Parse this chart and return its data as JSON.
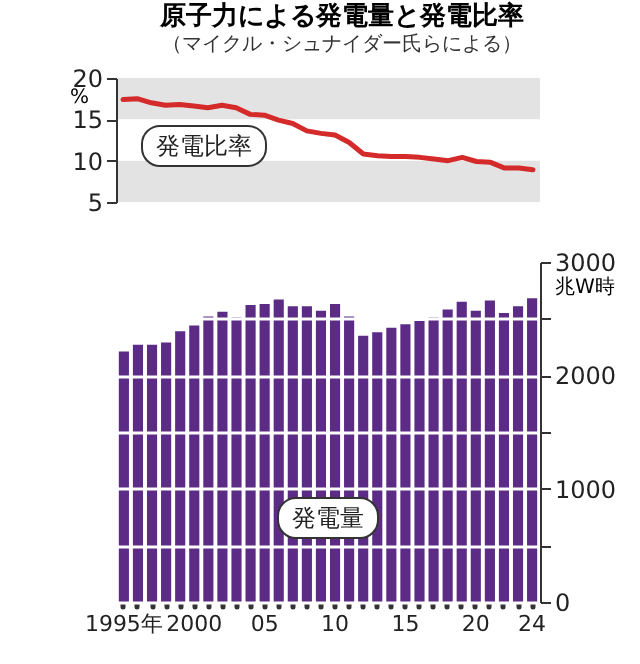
{
  "chart_data": [
    {
      "type": "line",
      "title": "原子力による発電量と発電比率",
      "subtitle": "（マイクル・シュナイダー氏らによる）",
      "categories": [
        null,
        null,
        null,
        null,
        null,
        null,
        null,
        null,
        null,
        null,
        null,
        null,
        null,
        null,
        null,
        null,
        null,
        null,
        null,
        null,
        null,
        null,
        null,
        null,
        null,
        null,
        null,
        null,
        null,
        null
      ],
      "series": [
        {
          "name": "発電比率",
          "color": "#d42a2a",
          "values": [
            17.4,
            17.5,
            17.0,
            16.7,
            16.8,
            16.6,
            16.4,
            16.7,
            16.4,
            15.6,
            15.5,
            14.9,
            14.5,
            13.6,
            13.3,
            13.1,
            12.2,
            10.8,
            10.6,
            10.5,
            10.5,
            10.4,
            10.2,
            10.0,
            10.4,
            9.9,
            9.8,
            9.1,
            9.1,
            8.9
          ]
        }
      ],
      "ylabel": "%",
      "ylim": [
        5,
        20
      ],
      "yticks": [
        5,
        10,
        15,
        20
      ],
      "bands": [
        {
          "axis": "y",
          "from": 15,
          "to": 20,
          "color": "#e3e3e3"
        },
        {
          "axis": "y",
          "from": 5,
          "to": 10,
          "color": "#e3e3e3"
        }
      ],
      "tick_labels": "y"
    },
    {
      "type": "bar",
      "categories": [
        "1995年",
        null,
        null,
        null,
        null,
        "2000",
        null,
        null,
        null,
        null,
        "05",
        null,
        null,
        null,
        null,
        "10",
        null,
        null,
        null,
        null,
        "15",
        null,
        null,
        null,
        null,
        "20",
        null,
        null,
        null,
        "24"
      ],
      "series": [
        {
          "name": "発電量",
          "color": "#5b2b86",
          "values": [
            2210,
            2270,
            2270,
            2290,
            2390,
            2440,
            2520,
            2560,
            2510,
            2620,
            2630,
            2670,
            2610,
            2610,
            2570,
            2630,
            2520,
            2350,
            2380,
            2420,
            2450,
            2480,
            2510,
            2580,
            2650,
            2570,
            2660,
            2550,
            2610,
            2680
          ]
        }
      ],
      "ylabel": "兆W時",
      "ylim": [
        0,
        3000
      ],
      "yticks": [
        0,
        {
          "value": 500,
          "label": null
        },
        1000,
        {
          "value": 1500,
          "label": null
        },
        2000,
        {
          "value": 2500,
          "label": null
        },
        3000
      ],
      "grid": "y"
    }
  ]
}
